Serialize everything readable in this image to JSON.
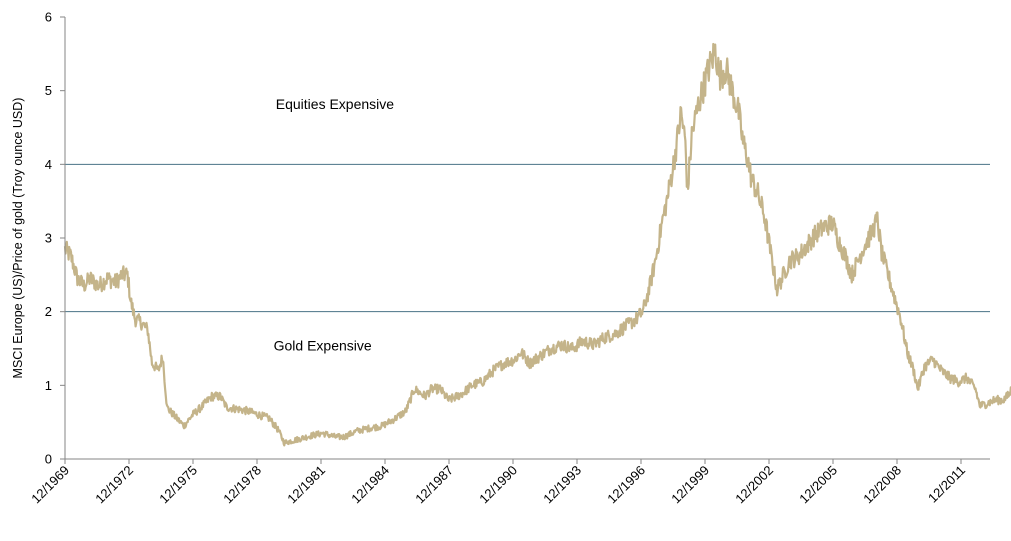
{
  "chart_data": {
    "type": "line",
    "title": "",
    "xlabel": "",
    "ylabel": "MSCI Europe (US)/Price of gold (Troy ounce USD)",
    "ylim": [
      0,
      6
    ],
    "xlim": [
      1969.92,
      2014.6
    ],
    "y_ticks": [
      "0",
      "1",
      "2",
      "3",
      "4",
      "5",
      "6"
    ],
    "x_ticks": [
      {
        "label": "12/1969",
        "year": 1969.92
      },
      {
        "label": "12/1972",
        "year": 1972.92
      },
      {
        "label": "12/1975",
        "year": 1975.92
      },
      {
        "label": "12/1978",
        "year": 1978.92
      },
      {
        "label": "12/1981",
        "year": 1981.92
      },
      {
        "label": "12/1984",
        "year": 1984.92
      },
      {
        "label": "12/1987",
        "year": 1987.92
      },
      {
        "label": "12/1990",
        "year": 1990.92
      },
      {
        "label": "12/1993",
        "year": 1993.92
      },
      {
        "label": "12/1996",
        "year": 1996.92
      },
      {
        "label": "12/1999",
        "year": 1999.92
      },
      {
        "label": "12/2002",
        "year": 2002.92
      },
      {
        "label": "12/2005",
        "year": 2005.92
      },
      {
        "label": "12/2008",
        "year": 2008.92
      },
      {
        "label": "12/2011",
        "year": 2011.92
      }
    ],
    "grid": false,
    "legend": "none",
    "reference_lines": [
      {
        "name": "equities-expensive-threshold",
        "y": 4,
        "color": "#4a7386"
      },
      {
        "name": "gold-expensive-threshold",
        "y": 2,
        "color": "#4a7386"
      }
    ],
    "annotations": [
      {
        "name": "equities-expensive-label",
        "text": "Equities Expensive",
        "x": 1979.8,
        "y": 4.75
      },
      {
        "name": "gold-expensive-label",
        "text": "Gold Expensive",
        "x": 1979.7,
        "y": 1.47
      }
    ],
    "series": [
      {
        "name": "MSCI Europe / Gold ratio",
        "color": "#c4b48a",
        "x": [
          1969.92,
          1970.2,
          1970.5,
          1970.8,
          1971.1,
          1971.5,
          1971.9,
          1972.3,
          1972.6,
          1972.85,
          1973.0,
          1973.2,
          1973.5,
          1973.8,
          1974.0,
          1974.3,
          1974.5,
          1974.7,
          1975.0,
          1975.5,
          1975.9,
          1976.3,
          1976.8,
          1977.2,
          1977.5,
          1978.0,
          1978.5,
          1979.0,
          1979.5,
          1979.9,
          1980.2,
          1980.6,
          1981.0,
          1981.5,
          1982.0,
          1982.6,
          1983.0,
          1983.6,
          1984.2,
          1984.8,
          1985.4,
          1985.9,
          1986.3,
          1986.8,
          1987.1,
          1987.5,
          1987.9,
          1988.3,
          1988.6,
          1989.0,
          1989.5,
          1990.0,
          1990.5,
          1991.0,
          1991.3,
          1991.7,
          1992.2,
          1992.7,
          1993.2,
          1993.7,
          1994.2,
          1994.7,
          1995.2,
          1995.7,
          1996.2,
          1996.7,
          1997.0,
          1997.3,
          1997.6,
          1997.9,
          1998.2,
          1998.5,
          1998.8,
          1999.0,
          1999.1,
          1999.3,
          1999.6,
          1999.9,
          2000.1,
          2000.4,
          2000.6,
          2000.9,
          2001.2,
          2001.5,
          2001.7,
          2001.9,
          2002.1,
          2002.4,
          2002.7,
          2003.0,
          2003.3,
          2003.6,
          2003.9,
          2004.3,
          2004.7,
          2005.1,
          2005.5,
          2005.9,
          2006.2,
          2006.5,
          2006.8,
          2007.1,
          2007.4,
          2007.7,
          2008.0,
          2008.2,
          2008.5,
          2008.8,
          2009.1,
          2009.4,
          2009.7,
          2009.9,
          2010.2,
          2010.6,
          2011.0,
          2011.4,
          2011.8,
          2012.2,
          2012.6,
          2012.8,
          2013.1,
          2013.5,
          2013.9,
          2014.2,
          2014.45
        ],
        "values": [
          2.85,
          2.75,
          2.45,
          2.35,
          2.45,
          2.35,
          2.45,
          2.4,
          2.5,
          2.5,
          2.15,
          1.9,
          1.85,
          1.75,
          1.3,
          1.2,
          1.4,
          0.7,
          0.6,
          0.45,
          0.6,
          0.7,
          0.85,
          0.85,
          0.7,
          0.68,
          0.65,
          0.6,
          0.55,
          0.4,
          0.22,
          0.25,
          0.28,
          0.32,
          0.35,
          0.3,
          0.3,
          0.38,
          0.42,
          0.45,
          0.55,
          0.65,
          0.95,
          0.85,
          0.95,
          0.95,
          0.8,
          0.85,
          0.9,
          1.0,
          1.05,
          1.2,
          1.3,
          1.35,
          1.45,
          1.3,
          1.4,
          1.5,
          1.55,
          1.5,
          1.6,
          1.55,
          1.65,
          1.7,
          1.8,
          1.9,
          2.0,
          2.3,
          2.7,
          3.2,
          3.6,
          4.1,
          4.7,
          4.3,
          3.6,
          4.4,
          4.8,
          5.1,
          5.3,
          5.55,
          5.2,
          5.3,
          5.0,
          4.7,
          4.3,
          4.1,
          3.8,
          3.6,
          3.3,
          2.8,
          2.3,
          2.5,
          2.7,
          2.75,
          2.9,
          3.05,
          3.15,
          3.2,
          2.95,
          2.75,
          2.5,
          2.7,
          2.9,
          3.05,
          3.25,
          2.8,
          2.5,
          2.2,
          1.9,
          1.45,
          1.2,
          0.95,
          1.25,
          1.35,
          1.2,
          1.1,
          1.05,
          1.1,
          0.95,
          0.72,
          0.75,
          0.8,
          0.8,
          0.88,
          1.12
        ]
      }
    ]
  }
}
